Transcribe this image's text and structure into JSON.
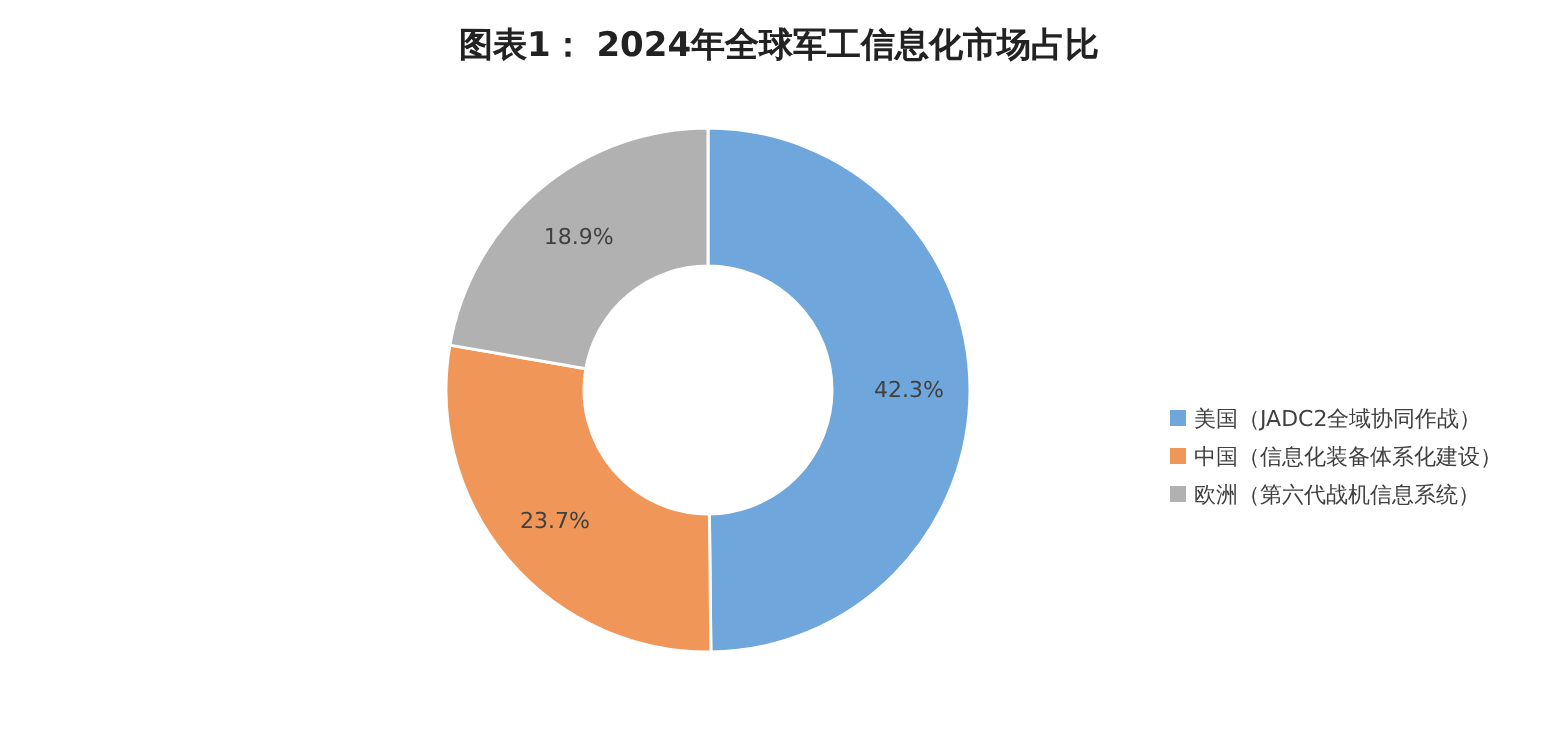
{
  "chart_data": {
    "type": "donut",
    "title": "图表1： 2024年全球军工信息化市场占比",
    "categories": [
      "美国（JADC2全域协同作战）",
      "中国（信息化装备体系化建设）",
      "欧洲（第六代战机信息系统）"
    ],
    "values": [
      42.3,
      23.7,
      18.9
    ],
    "colors": [
      "#6fa6dc",
      "#f09658",
      "#b1b1b1"
    ],
    "value_labels": [
      "42.3%",
      "23.7%",
      "18.9%"
    ],
    "legend": "right"
  }
}
